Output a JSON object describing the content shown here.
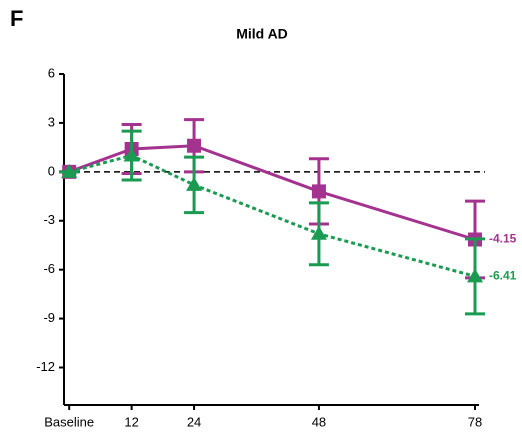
{
  "chart_data": {
    "type": "line",
    "panel": "F",
    "title": "Mild AD",
    "x": [
      0,
      12,
      24,
      48,
      78
    ],
    "xlim": [
      -1,
      78
    ],
    "xticks": [
      {
        "value": 0,
        "label": "Baseline"
      },
      12,
      24,
      48,
      78
    ],
    "ylim": [
      -14.3,
      6
    ],
    "yticks": [
      6,
      3,
      0,
      -3,
      -6,
      -9,
      -12
    ],
    "reference_line": 0,
    "series": [
      {
        "color": "#a3338e",
        "marker": "square",
        "dashed": false,
        "values": [
          0,
          1.4,
          1.6,
          -1.2,
          -4.15
        ],
        "errors": [
          0,
          1.5,
          1.6,
          2.0,
          2.35
        ]
      },
      {
        "color": "#1b9a52",
        "marker": "triangle",
        "dashed": true,
        "values": [
          0,
          1.0,
          -0.8,
          -3.8,
          -6.41
        ],
        "errors": [
          0,
          1.5,
          1.7,
          1.9,
          2.3
        ]
      }
    ]
  }
}
